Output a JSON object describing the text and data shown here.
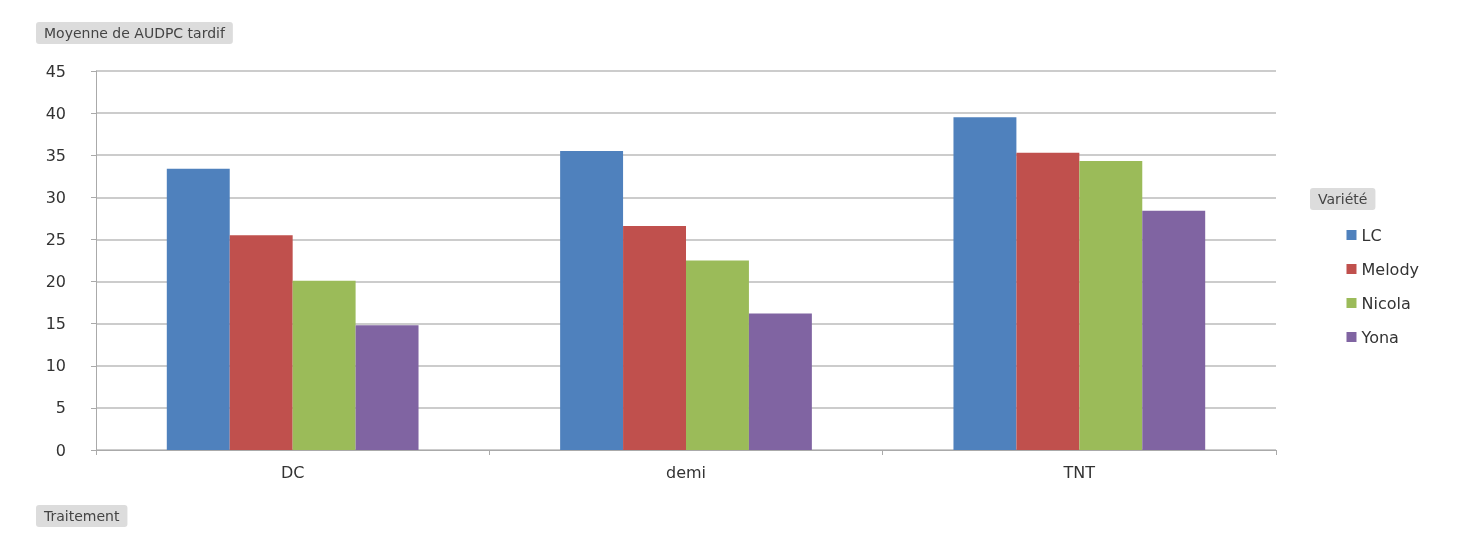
{
  "chart_data": {
    "type": "bar",
    "title": "Moyenne de AUDPC tardif",
    "xlabel": "Traitement",
    "legend_title": "Variété",
    "categories": [
      "DC",
      "demi",
      "TNT"
    ],
    "series": [
      {
        "name": "LC",
        "color": "#4f81bd",
        "values": [
          33.4,
          35.5,
          39.5
        ]
      },
      {
        "name": "Melody",
        "color": "#c0504d",
        "values": [
          25.5,
          26.6,
          35.3
        ]
      },
      {
        "name": "Nicola",
        "color": "#9bbb59",
        "values": [
          20.1,
          22.5,
          34.3
        ]
      },
      {
        "name": "Yona",
        "color": "#8064a2",
        "values": [
          14.8,
          16.2,
          28.4
        ]
      }
    ],
    "ylim": [
      0,
      45
    ],
    "yticks": [
      0,
      5,
      10,
      15,
      20,
      25,
      30,
      35,
      40,
      45
    ],
    "grid": "y",
    "legend": "right"
  }
}
